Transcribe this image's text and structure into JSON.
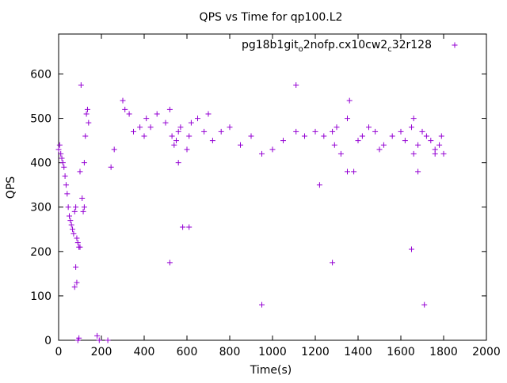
{
  "chart_data": {
    "type": "scatter",
    "title": "QPS vs Time for qp100.L2",
    "xlabel": "Time(s)",
    "ylabel": "QPS",
    "xlim": [
      0,
      2000
    ],
    "ylim": [
      0,
      690
    ],
    "xticks": [
      0,
      200,
      400,
      600,
      800,
      1000,
      1200,
      1400,
      1600,
      1800,
      2000
    ],
    "yticks": [
      0,
      100,
      200,
      300,
      400,
      500,
      600
    ],
    "grid": false,
    "legend_position": "top-right",
    "marker": "+",
    "color": "#9400d3",
    "series": [
      {
        "name": "pg18b1git_o2nofp.cx10cw2_c32r128",
        "legend_label": {
          "parts": [
            "pg18b1git",
            "o",
            "2nofp.cx10cw2",
            "c",
            "32r128"
          ]
        },
        "x": [
          0,
          5,
          10,
          15,
          20,
          25,
          30,
          35,
          40,
          45,
          50,
          55,
          60,
          65,
          70,
          75,
          80,
          85,
          90,
          95,
          100,
          105,
          110,
          115,
          120,
          125,
          130,
          135,
          140,
          75,
          80,
          85,
          90,
          95,
          100,
          190,
          120,
          230,
          245,
          260,
          300,
          310,
          330,
          350,
          380,
          400,
          410,
          430,
          460,
          500,
          520,
          530,
          540,
          550,
          560,
          570,
          600,
          610,
          620,
          650,
          680,
          700,
          720,
          760,
          800,
          850,
          900,
          950,
          1000,
          1050,
          1110,
          1150,
          1200,
          1220,
          1240,
          1280,
          1290,
          1300,
          1320,
          1350,
          1360,
          1400,
          1420,
          1450,
          1480,
          1500,
          1520,
          1560,
          1600,
          1620,
          1650,
          1660,
          1680,
          1700,
          1720,
          1740,
          1760,
          1780,
          1800,
          950,
          1650,
          1710,
          180,
          520,
          560,
          580,
          610,
          1280,
          1660,
          1680,
          1110,
          1350,
          1380,
          1760,
          1790
        ],
        "y": [
          430,
          440,
          420,
          410,
          400,
          390,
          370,
          350,
          330,
          300,
          280,
          270,
          260,
          250,
          240,
          290,
          300,
          230,
          220,
          210,
          380,
          575,
          320,
          290,
          400,
          460,
          510,
          520,
          490,
          120,
          165,
          130,
          0,
          5,
          210,
          0,
          300,
          0,
          390,
          430,
          540,
          520,
          510,
          470,
          480,
          460,
          500,
          480,
          510,
          490,
          520,
          460,
          440,
          450,
          470,
          480,
          430,
          460,
          490,
          500,
          470,
          510,
          450,
          470,
          480,
          440,
          460,
          420,
          430,
          450,
          575,
          460,
          470,
          350,
          460,
          470,
          440,
          480,
          420,
          500,
          540,
          450,
          460,
          480,
          470,
          430,
          440,
          460,
          470,
          450,
          480,
          420,
          440,
          470,
          460,
          450,
          430,
          440,
          420,
          80,
          205,
          80,
          10,
          175,
          400,
          255,
          255,
          175,
          500,
          380,
          470,
          380,
          380,
          420,
          460
        ]
      }
    ]
  }
}
